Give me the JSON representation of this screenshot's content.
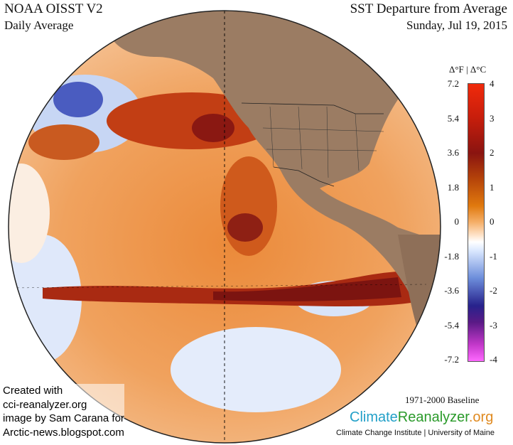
{
  "header": {
    "product": "NOAA OISST V2",
    "period": "Daily Average",
    "title": "SST Departure from Average",
    "date": "Sunday, Jul 19, 2015"
  },
  "colorbar": {
    "units": "Δ°F  |  Δ°C",
    "fahrenheit_ticks": [
      "7.2",
      "5.4",
      "3.6",
      "1.8",
      "0",
      "-1.8",
      "-3.6",
      "-5.4",
      "-7.2"
    ],
    "celsius_ticks": [
      "4",
      "3",
      "2",
      "1",
      "0",
      "-1",
      "-2",
      "-3",
      "-4"
    ],
    "colors": {
      "warm_max": "#f02a0b",
      "warm": "#8a1410",
      "orange": "#e0790e",
      "neutral": "#ffffff",
      "cool": "#6d8edb",
      "cold": "#27228c",
      "cold_max": "#ff68ff"
    }
  },
  "footer": {
    "baseline": "1971-2000 Baseline",
    "brand_part1": "Climate",
    "brand_part2": "Reanalyzer",
    "brand_part3": ".org",
    "brand_sub": "Climate Change Institute | University of Maine"
  },
  "credit": {
    "line1": "Created with",
    "line2": "cci-reanalyzer.org",
    "line3": "image by Sam Carana for",
    "line4": "Arctic-news.blogspot.com"
  },
  "map": {
    "projection_icon": "orthographic-globe",
    "land_color": "#9b7c63",
    "ocean_warm_color": "#e98b3c",
    "equatorial_band_color": "#8e1a10"
  }
}
